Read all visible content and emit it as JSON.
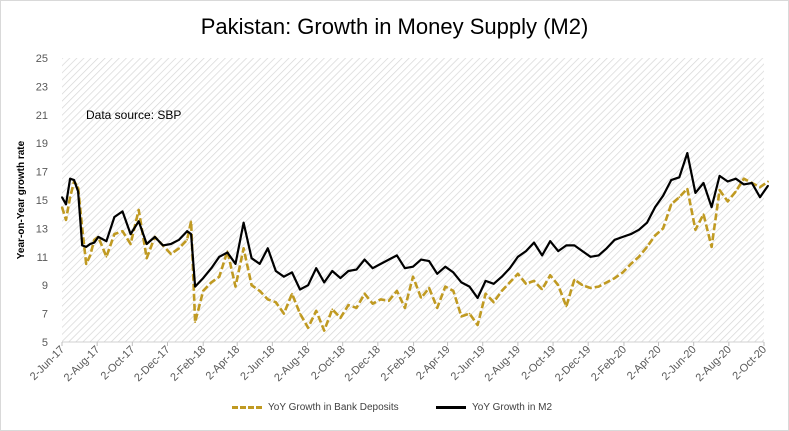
{
  "chart_data": {
    "type": "line",
    "title": "Pakistan: Growth in Money Supply (M2)",
    "annotation": "Data source: SBP",
    "xlabel": "",
    "ylabel": "Year-on-Year growth rate",
    "ylim": [
      5,
      25
    ],
    "yticks": [
      "5",
      "7",
      "9",
      "11",
      "13",
      "15",
      "17",
      "19",
      "21",
      "23",
      "25"
    ],
    "xticks": [
      "2-Jun-17",
      "2-Aug-17",
      "2-Oct-17",
      "2-Dec-17",
      "2-Feb-18",
      "2-Apr-18",
      "2-Jun-18",
      "2-Aug-18",
      "2-Oct-18",
      "2-Dec-18",
      "2-Feb-19",
      "2-Apr-19",
      "2-Jun-19",
      "2-Aug-19",
      "2-Oct-19",
      "2-Dec-19",
      "2-Feb-20",
      "2-Apr-20",
      "2-Jun-20",
      "2-Aug-20",
      "2-Oct-20"
    ],
    "grid": false,
    "plot_background": "diagonal hatch",
    "legend_position": "bottom",
    "series": [
      {
        "name": "YoY Growth in Bank Deposits",
        "color": "#c09a22",
        "style": "dashed",
        "x": [
          "2017-06-02",
          "2017-06-09",
          "2017-06-16",
          "2017-06-23",
          "2017-06-30",
          "2017-07-07",
          "2017-07-14",
          "2017-07-21",
          "2017-07-28",
          "2017-08-04",
          "2017-08-18",
          "2017-09-01",
          "2017-09-15",
          "2017-09-29",
          "2017-10-13",
          "2017-10-27",
          "2017-11-10",
          "2017-11-24",
          "2017-12-08",
          "2017-12-22",
          "2018-01-05",
          "2018-01-12",
          "2018-01-19",
          "2018-02-02",
          "2018-02-16",
          "2018-03-02",
          "2018-03-16",
          "2018-03-30",
          "2018-04-13",
          "2018-04-27",
          "2018-05-11",
          "2018-05-25",
          "2018-06-08",
          "2018-06-22",
          "2018-07-06",
          "2018-07-20",
          "2018-08-03",
          "2018-08-17",
          "2018-08-31",
          "2018-09-14",
          "2018-09-28",
          "2018-10-12",
          "2018-10-26",
          "2018-11-09",
          "2018-11-23",
          "2018-12-07",
          "2018-12-21",
          "2019-01-04",
          "2019-01-18",
          "2019-02-01",
          "2019-02-15",
          "2019-03-01",
          "2019-03-15",
          "2019-03-29",
          "2019-04-12",
          "2019-04-26",
          "2019-05-10",
          "2019-05-24",
          "2019-06-07",
          "2019-06-21",
          "2019-07-05",
          "2019-07-19",
          "2019-08-02",
          "2019-08-16",
          "2019-08-30",
          "2019-09-13",
          "2019-09-27",
          "2019-10-11",
          "2019-10-25",
          "2019-11-08",
          "2019-11-22",
          "2019-12-06",
          "2019-12-20",
          "2020-01-03",
          "2020-01-17",
          "2020-01-31",
          "2020-02-14",
          "2020-02-28",
          "2020-03-13",
          "2020-03-27",
          "2020-04-10",
          "2020-04-24",
          "2020-05-08",
          "2020-05-22",
          "2020-06-05",
          "2020-06-19",
          "2020-07-03",
          "2020-07-17",
          "2020-07-31",
          "2020-08-14",
          "2020-08-28",
          "2020-09-11",
          "2020-09-25",
          "2020-10-09"
        ],
        "values": [
          14.5,
          13.6,
          15.2,
          16.3,
          15.9,
          13.0,
          10.5,
          11.1,
          12.2,
          12.4,
          11.0,
          12.6,
          12.8,
          11.9,
          14.3,
          10.9,
          12.4,
          11.8,
          11.2,
          11.6,
          12.2,
          13.5,
          6.4,
          8.6,
          9.2,
          9.6,
          11.4,
          8.9,
          11.6,
          9.0,
          8.6,
          8.0,
          7.8,
          7.0,
          8.4,
          7.0,
          6.0,
          7.2,
          5.8,
          7.3,
          6.7,
          7.6,
          7.4,
          8.4,
          7.7,
          8.0,
          7.9,
          8.6,
          7.4,
          9.6,
          8.1,
          8.8,
          7.4,
          8.9,
          8.6,
          6.8,
          7.0,
          6.2,
          8.4,
          7.8,
          8.6,
          9.2,
          9.8,
          9.1,
          9.3,
          8.7,
          9.7,
          9.0,
          7.5,
          9.4,
          9.0,
          8.8,
          8.9,
          9.2,
          9.5,
          9.9,
          10.5,
          11.0,
          11.7,
          12.5,
          13.0,
          14.7,
          15.2,
          15.8,
          12.9,
          14.0,
          11.7,
          15.7,
          14.9,
          15.6,
          16.5,
          16.2,
          15.9,
          16.3
        ]
      },
      {
        "name": "YoY Growth in M2",
        "color": "#000000",
        "style": "solid",
        "x": [
          "2017-06-02",
          "2017-06-09",
          "2017-06-16",
          "2017-06-23",
          "2017-06-30",
          "2017-07-07",
          "2017-07-14",
          "2017-07-21",
          "2017-07-28",
          "2017-08-04",
          "2017-08-18",
          "2017-09-01",
          "2017-09-15",
          "2017-09-29",
          "2017-10-13",
          "2017-10-27",
          "2017-11-10",
          "2017-11-24",
          "2017-12-08",
          "2017-12-22",
          "2018-01-05",
          "2018-01-12",
          "2018-01-19",
          "2018-02-02",
          "2018-02-16",
          "2018-03-02",
          "2018-03-16",
          "2018-03-30",
          "2018-04-13",
          "2018-04-27",
          "2018-05-11",
          "2018-05-25",
          "2018-06-08",
          "2018-06-22",
          "2018-07-06",
          "2018-07-20",
          "2018-08-03",
          "2018-08-17",
          "2018-08-31",
          "2018-09-14",
          "2018-09-28",
          "2018-10-12",
          "2018-10-26",
          "2018-11-09",
          "2018-11-23",
          "2018-12-07",
          "2018-12-21",
          "2019-01-04",
          "2019-01-18",
          "2019-02-01",
          "2019-02-15",
          "2019-03-01",
          "2019-03-15",
          "2019-03-29",
          "2019-04-12",
          "2019-04-26",
          "2019-05-10",
          "2019-05-24",
          "2019-06-07",
          "2019-06-21",
          "2019-07-05",
          "2019-07-19",
          "2019-08-02",
          "2019-08-16",
          "2019-08-30",
          "2019-09-13",
          "2019-09-27",
          "2019-10-11",
          "2019-10-25",
          "2019-11-08",
          "2019-11-22",
          "2019-12-06",
          "2019-12-20",
          "2020-01-03",
          "2020-01-17",
          "2020-01-31",
          "2020-02-14",
          "2020-02-28",
          "2020-03-13",
          "2020-03-27",
          "2020-04-10",
          "2020-04-24",
          "2020-05-08",
          "2020-05-22",
          "2020-06-05",
          "2020-06-19",
          "2020-07-03",
          "2020-07-17",
          "2020-07-31",
          "2020-08-14",
          "2020-08-28",
          "2020-09-11",
          "2020-09-25",
          "2020-10-09"
        ],
        "values": [
          15.2,
          14.7,
          16.5,
          16.4,
          15.6,
          11.8,
          11.7,
          11.9,
          12.0,
          12.4,
          12.1,
          13.8,
          14.2,
          12.6,
          13.5,
          11.9,
          12.4,
          11.8,
          11.9,
          12.2,
          12.8,
          12.6,
          8.9,
          9.5,
          10.2,
          11.0,
          11.3,
          10.5,
          13.4,
          10.9,
          10.5,
          11.6,
          10.0,
          9.6,
          9.9,
          8.7,
          9.0,
          10.2,
          9.2,
          10.0,
          9.5,
          10.0,
          10.1,
          10.8,
          10.2,
          10.5,
          10.8,
          11.1,
          10.2,
          10.3,
          10.8,
          10.7,
          9.8,
          10.3,
          9.9,
          9.2,
          8.9,
          8.1,
          9.3,
          9.1,
          9.6,
          10.2,
          11.0,
          11.4,
          12.0,
          11.1,
          12.1,
          11.4,
          11.8,
          11.8,
          11.4,
          11.0,
          11.1,
          11.6,
          12.2,
          12.4,
          12.6,
          12.9,
          13.4,
          14.5,
          15.3,
          16.4,
          16.6,
          18.3,
          15.5,
          16.2,
          14.5,
          16.7,
          16.3,
          16.5,
          16.1,
          16.2,
          15.2,
          16.0
        ]
      }
    ]
  }
}
